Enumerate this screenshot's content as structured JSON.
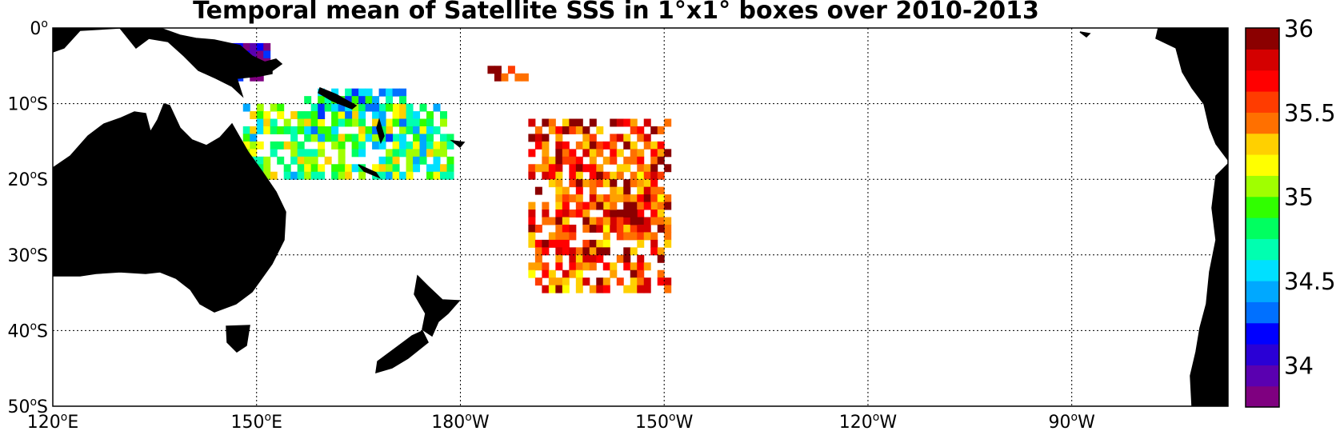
{
  "title": "Temporal mean of Satellite SSS in 1°x1° boxes over 2010-2013",
  "map": {
    "lon_range": [
      120,
      293
    ],
    "lat_range": [
      -50,
      0
    ],
    "grid": true,
    "x_ticks": [
      {
        "value": 120,
        "num": "120",
        "hemi": "E"
      },
      {
        "value": 150,
        "num": "150",
        "hemi": "E"
      },
      {
        "value": 180,
        "num": "180",
        "hemi": "W"
      },
      {
        "value": 210,
        "num": "150",
        "hemi": "W"
      },
      {
        "value": 240,
        "num": "120",
        "hemi": "W"
      },
      {
        "value": 270,
        "num": "90",
        "hemi": "W"
      }
    ],
    "y_ticks": [
      {
        "value": 0,
        "num": "0",
        "hemi": ""
      },
      {
        "value": -10,
        "num": "10",
        "hemi": "S"
      },
      {
        "value": -20,
        "num": "20",
        "hemi": "S"
      },
      {
        "value": -30,
        "num": "30",
        "hemi": "S"
      },
      {
        "value": -40,
        "num": "40",
        "hemi": "S"
      },
      {
        "value": -50,
        "num": "50",
        "hemi": "S"
      }
    ],
    "land_color": "#808080"
  },
  "colorbar": {
    "vmin": 33.75,
    "vmax": 36.0,
    "levels": 18,
    "ticks": [
      "34",
      "34.5",
      "35",
      "35.5",
      "36"
    ],
    "tick_values": [
      34,
      34.5,
      35,
      35.5,
      36
    ],
    "colors": [
      "#7f0080",
      "#5a00b0",
      "#2a00d5",
      "#0000ff",
      "#0033ff",
      "#0070ff",
      "#00a8ff",
      "#00e0ff",
      "#00ffb0",
      "#00ff60",
      "#30ff00",
      "#a0ff00",
      "#ffff00",
      "#ffd000",
      "#ffa000",
      "#ff7000",
      "#ff3c00",
      "#ff0000",
      "#d40000",
      "#8b0000"
    ]
  },
  "chart_data": {
    "type": "heatmap",
    "title": "Temporal mean of Satellite SSS in 1°x1° boxes over 2010-2013",
    "xlim": [
      120,
      293
    ],
    "ylim": [
      -50,
      0
    ],
    "clim": [
      33.75,
      36.0
    ],
    "regions": [
      {
        "lon_range": [
          145,
          152
        ],
        "lat_range": [
          -7,
          -2
        ],
        "sss_approx": 33.9
      },
      {
        "lon_range": [
          148,
          179
        ],
        "lat_range": [
          -20,
          -10
        ],
        "sss_approx": 34.9
      },
      {
        "lon_range": [
          157,
          173
        ],
        "lat_range": [
          -15,
          -8
        ],
        "sss_approx": 34.6
      },
      {
        "lon_range": [
          184,
          190
        ],
        "lat_range": [
          -7,
          -5
        ],
        "sss_approx": 35.9
      },
      {
        "lon_range": [
          190,
          211
        ],
        "lat_range": [
          -35,
          -12
        ],
        "sss_approx": 35.6
      },
      {
        "lon_range": [
          198,
          210
        ],
        "lat_range": [
          -27,
          -22
        ],
        "sss_approx": 35.8
      }
    ]
  }
}
